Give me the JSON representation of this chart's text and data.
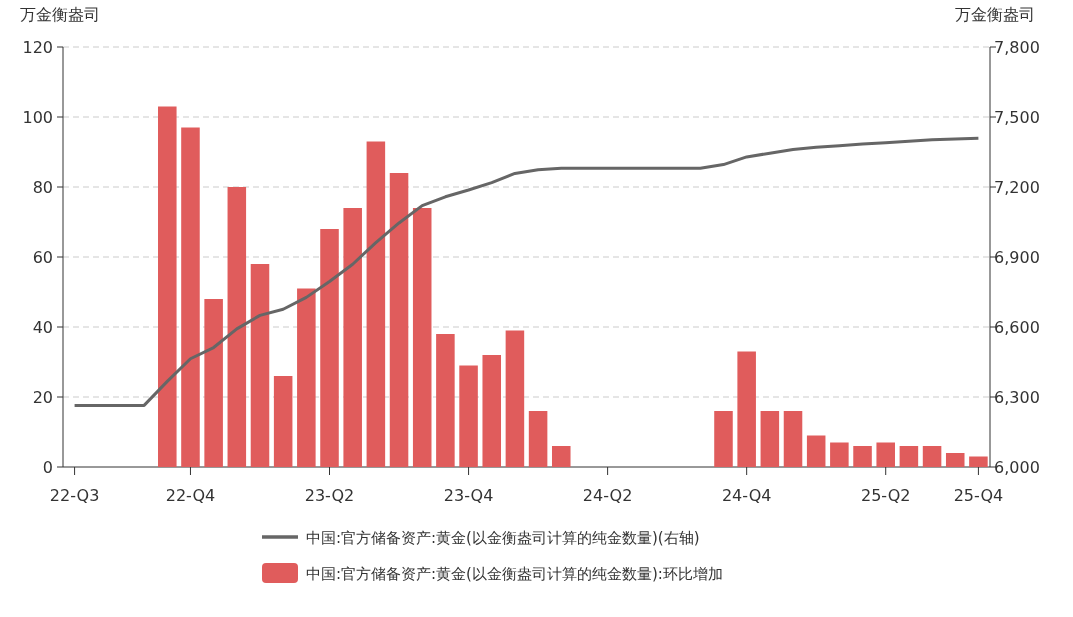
{
  "chart_data": {
    "type": "bar",
    "categories": [
      "22-Q3",
      null,
      null,
      null,
      null,
      "22-Q4",
      null,
      null,
      null,
      null,
      null,
      "23-Q2",
      null,
      null,
      null,
      null,
      null,
      "23-Q4",
      null,
      null,
      null,
      null,
      null,
      "24-Q2",
      null,
      null,
      null,
      null,
      null,
      "24-Q4",
      null,
      null,
      null,
      null,
      null,
      "25-Q2",
      null,
      null,
      null,
      "25-Q4"
    ],
    "series": [
      {
        "name": "中国:官方储备资产:黄金(以金衡盎司计算的纯金数量)(右轴)",
        "type": "line",
        "axis": "y2",
        "color": "#666666",
        "values": [
          6264,
          6264,
          6264,
          6264,
          6367,
          6464,
          6512,
          6592,
          6650,
          6676,
          6727,
          6795,
          6869,
          6962,
          7046,
          7120,
          7158,
          7187,
          7219,
          7258,
          7274,
          7280,
          7280,
          7280,
          7280,
          7280,
          7280,
          7280,
          7296,
          7329,
          7345,
          7361,
          7370,
          7377,
          7384,
          7390,
          7396,
          7402,
          7406,
          7409
        ]
      },
      {
        "name": "中国:官方储备资产:黄金(以金衡盎司计算的纯金数量):环比增加",
        "color": "#e05c5c",
        "values": [
          0,
          0,
          0,
          0,
          103,
          97,
          48,
          80,
          58,
          26,
          51,
          68,
          74,
          93,
          84,
          74,
          38,
          29,
          32,
          39,
          16,
          6,
          0,
          0,
          0,
          0,
          0,
          0,
          16,
          33,
          16,
          16,
          9,
          7,
          6,
          7,
          6,
          6,
          4,
          3
        ]
      }
    ],
    "ylabel": "万金衡盎司",
    "y2label": "万金衡盎司",
    "ylim": [
      0,
      120
    ],
    "yticks": [
      0,
      20,
      40,
      60,
      80,
      100,
      120
    ],
    "y2lim": [
      6000,
      7800
    ],
    "y2ticks": [
      {
        "value": 6000,
        "label": "6,000"
      },
      {
        "value": 6300,
        "label": "6,300"
      },
      {
        "value": 6600,
        "label": "6,600"
      },
      {
        "value": 6900,
        "label": "6,900"
      },
      {
        "value": 7200,
        "label": "7,200"
      },
      {
        "value": 7500,
        "label": "7,500"
      },
      {
        "value": 7800,
        "label": "7,800"
      }
    ],
    "grid": "y",
    "legend": "bottom"
  }
}
